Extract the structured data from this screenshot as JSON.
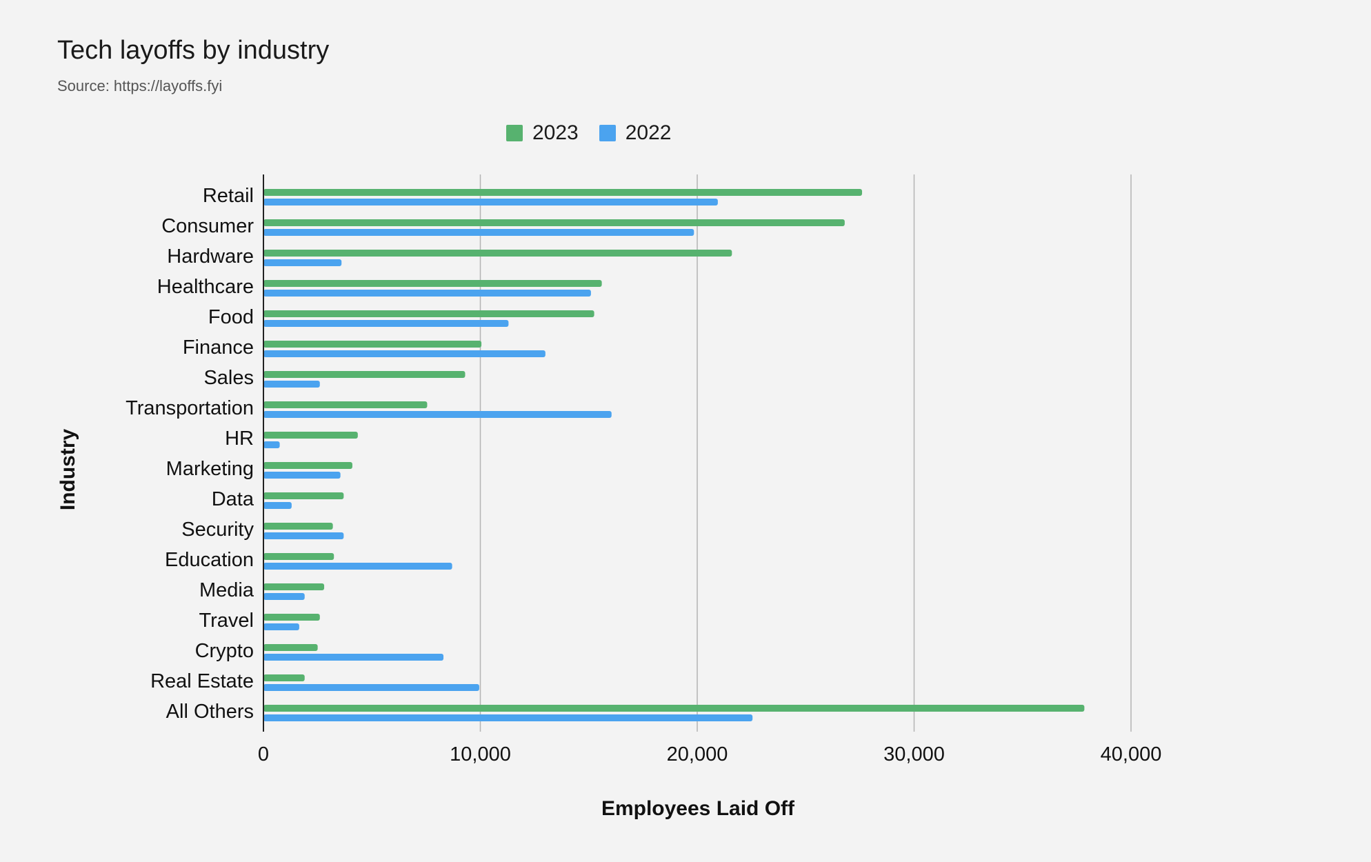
{
  "chart_data": {
    "type": "bar",
    "orientation": "horizontal",
    "title": "Tech layoffs by industry",
    "subtitle": "Source: https://layoffs.fyi",
    "xlabel": "Employees Laid Off",
    "ylabel": "Industry",
    "xlim": [
      0,
      40000
    ],
    "xticks": [
      0,
      10000,
      20000,
      30000,
      40000
    ],
    "xtick_labels": [
      "0",
      "10,000",
      "20,000",
      "30,000",
      "40,000"
    ],
    "grid": true,
    "legend_position": "top-center",
    "categories": [
      "Retail",
      "Consumer",
      "Hardware",
      "Healthcare",
      "Food",
      "Finance",
      "Sales",
      "Transportation",
      "HR",
      "Marketing",
      "Data",
      "Security",
      "Education",
      "Media",
      "Travel",
      "Crypto",
      "Real Estate",
      "All Others"
    ],
    "series": [
      {
        "name": "2023",
        "color": "#57b26f",
        "values": [
          27600,
          26800,
          21600,
          15600,
          15250,
          10050,
          9300,
          7550,
          4350,
          4100,
          3700,
          3200,
          3250,
          2800,
          2600,
          2500,
          1900,
          37850
        ]
      },
      {
        "name": "2022",
        "color": "#4ba3ef",
        "values": [
          20950,
          19850,
          3600,
          15100,
          11300,
          13000,
          2600,
          16050,
          750,
          3550,
          1300,
          3700,
          8700,
          1900,
          1650,
          8300,
          9950,
          22550
        ]
      }
    ]
  }
}
